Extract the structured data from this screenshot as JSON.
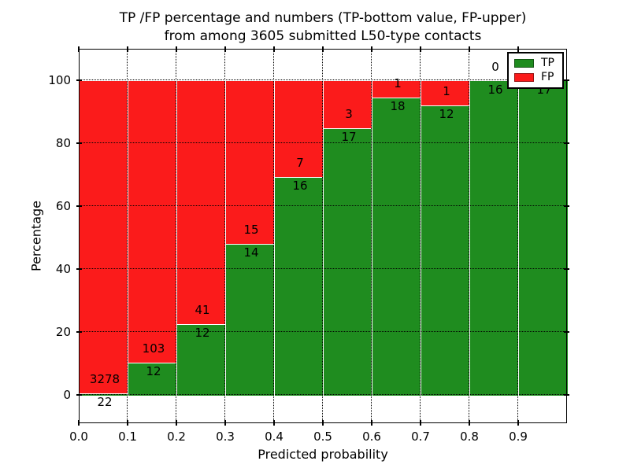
{
  "figure": {
    "title_line1": "TP /FP percentage and numbers (TP-bottom value, FP-upper)",
    "title_line2": "from among 3605 submitted L50-type contacts"
  },
  "chart_data": {
    "type": "bar",
    "stacked": true,
    "title": "TP /FP percentage and numbers (TP-bottom value, FP-upper)\nfrom among 3605 submitted L50-type contacts",
    "xlabel": "Predicted probability",
    "ylabel": "Percentage",
    "xlim": [
      0,
      1
    ],
    "ylim": [
      -9,
      110
    ],
    "bin_width": 0.1,
    "bin_left_edges": [
      0.0,
      0.1,
      0.2,
      0.3,
      0.4,
      0.5,
      0.6,
      0.7,
      0.8,
      0.9
    ],
    "xtick_labels": [
      "0.0",
      "0.1",
      "0.2",
      "0.3",
      "0.4",
      "0.5",
      "0.6",
      "0.7",
      "0.8",
      "0.9"
    ],
    "ytick_values": [
      0,
      20,
      40,
      60,
      80,
      100
    ],
    "grid": {
      "style": "dotted",
      "color": "#000000",
      "above_bars": true
    },
    "total_contacts": 3605,
    "series": [
      {
        "name": "TP",
        "color": "#1f8c1f",
        "counts": [
          22,
          12,
          12,
          14,
          16,
          17,
          18,
          12,
          16,
          17
        ]
      },
      {
        "name": "FP",
        "color": "#fb1b1b",
        "counts": [
          3278,
          103,
          41,
          15,
          7,
          3,
          1,
          1,
          0,
          0
        ]
      }
    ],
    "tp_percent": [
      0.67,
      10.43,
      22.64,
      48.28,
      69.57,
      85.0,
      94.74,
      92.31,
      100.0,
      100.0
    ],
    "legend": {
      "position": "upper right"
    },
    "annotation_rule": "TP count drawn below segment boundary, FP count drawn above boundary"
  }
}
